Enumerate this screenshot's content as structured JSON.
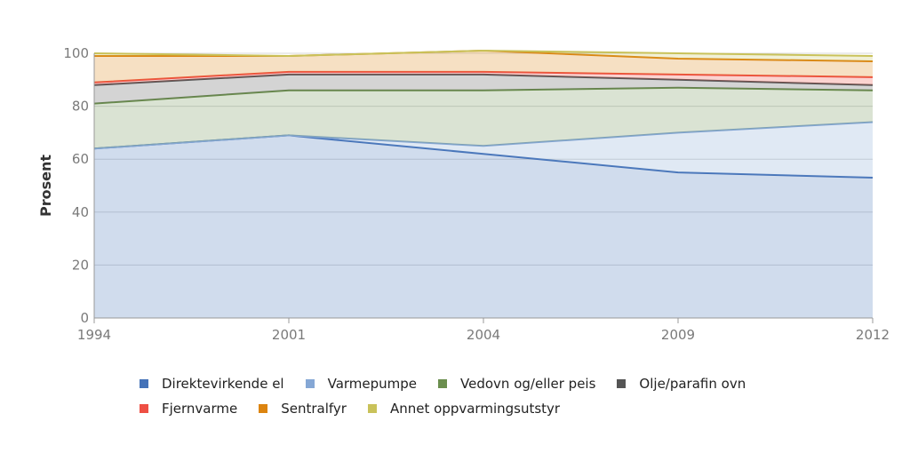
{
  "chart_data": {
    "type": "area",
    "stacked": true,
    "title": "",
    "xlabel": "",
    "ylabel": "Prosent",
    "ylim": [
      0,
      100
    ],
    "yticks": [
      "0",
      "20",
      "40",
      "60",
      "80",
      "100"
    ],
    "x": [
      "1994",
      "2001",
      "2004",
      "2009",
      "2012"
    ],
    "grid": true,
    "legend_position": "bottom",
    "series": [
      {
        "name": "Direktevirkende el",
        "color": "#4472b8",
        "values": [
          64,
          69,
          62,
          55,
          53
        ]
      },
      {
        "name": "Varmepumpe",
        "color": "#85a7d5",
        "values": [
          0,
          0,
          3,
          15,
          21
        ]
      },
      {
        "name": "Vedovn og/eller peis",
        "color": "#6b8e4e",
        "values": [
          17,
          17,
          21,
          17,
          12
        ]
      },
      {
        "name": "Olje/parafin ovn",
        "color": "#555555",
        "values": [
          7,
          6,
          6,
          3,
          2
        ]
      },
      {
        "name": "Fjernvarme",
        "color": "#ee4f44",
        "values": [
          1,
          1,
          1,
          2,
          3
        ]
      },
      {
        "name": "Sentralfyr",
        "color": "#dc8410",
        "values": [
          10,
          6,
          8,
          6,
          6
        ]
      },
      {
        "name": "Annet oppvarmingsutstyr",
        "color": "#c9c25a",
        "values": [
          1,
          0,
          0,
          2,
          2
        ]
      }
    ]
  }
}
